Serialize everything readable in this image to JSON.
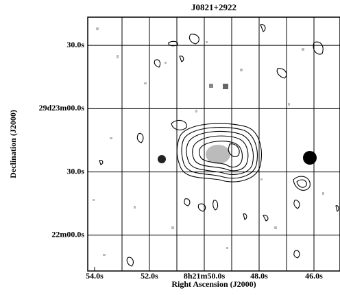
{
  "chart_data": {
    "type": "contour",
    "title": "J0821+2922",
    "x_label": "Right Ascension (J2000)",
    "y_label": "Declination (J2000)",
    "xlim": [
      54.25,
      45.05
    ],
    "ylim": [
      -17,
      103.4
    ],
    "xticks": [
      {
        "value": 54,
        "label": "54.0s"
      },
      {
        "value": 52,
        "label": "52.0s"
      },
      {
        "value": 50,
        "label": "8h21m50.0s"
      },
      {
        "value": 48,
        "label": "48.0s"
      },
      {
        "value": 46,
        "label": "46.0s"
      }
    ],
    "x_grid": [
      53,
      52,
      51,
      50,
      49,
      48,
      47,
      46
    ],
    "yticks": [
      {
        "value": 90,
        "label": "30.0s"
      },
      {
        "value": 60,
        "label": "29d23m00.0s"
      },
      {
        "value": 30,
        "label": "30.0s"
      },
      {
        "value": 0,
        "label": "22m00.0s"
      }
    ],
    "grid": true
  }
}
